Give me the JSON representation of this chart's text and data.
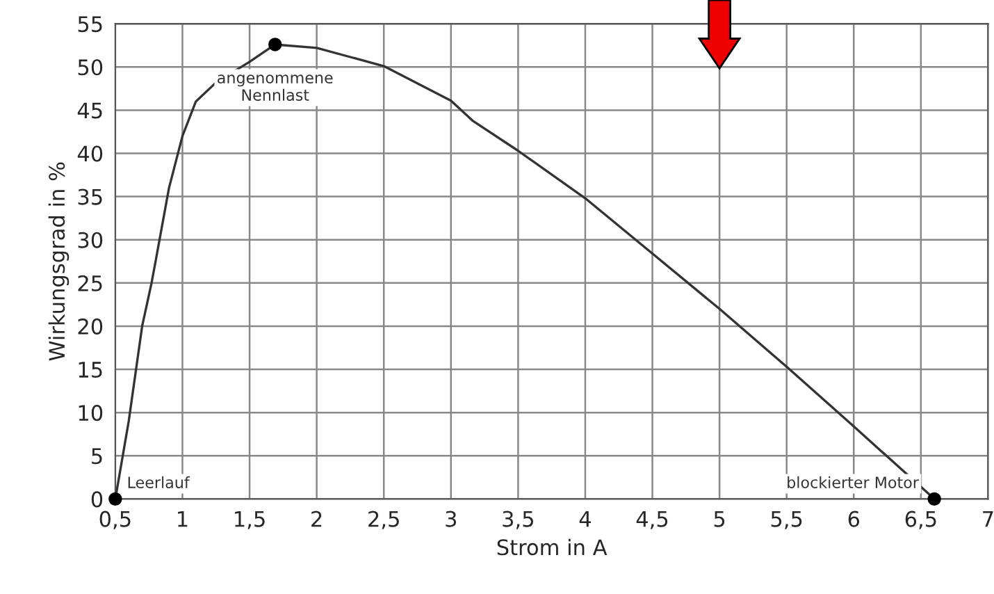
{
  "chart_data": {
    "type": "line",
    "xlabel": "Strom in A",
    "ylabel": "Wirkungsgrad in %",
    "xlim": [
      0.5,
      7
    ],
    "ylim": [
      0,
      55
    ],
    "xticks": [
      {
        "value": 0.5,
        "label": "0,5"
      },
      1,
      {
        "value": 1.5,
        "label": "1,5"
      },
      2,
      {
        "value": 2.5,
        "label": "2,5"
      },
      3,
      {
        "value": 3.5,
        "label": "3,5"
      },
      4,
      {
        "value": 4.5,
        "label": "4,5"
      },
      5,
      {
        "value": 5.5,
        "label": "5,5"
      },
      6,
      {
        "value": 6.5,
        "label": "6,5"
      },
      7
    ],
    "yticks": [
      0,
      5,
      10,
      15,
      20,
      25,
      30,
      35,
      40,
      45,
      50,
      55
    ],
    "grid": true,
    "legend": false,
    "series": [
      {
        "color": "#333333",
        "marker": "none",
        "line_style": "solid",
        "x": [
          0.5,
          0.6,
          0.7,
          0.77,
          0.8,
          0.9,
          1.0,
          1.1,
          1.25,
          1.5,
          1.69,
          2.0,
          2.5,
          3.0,
          3.16,
          3.5,
          4.0,
          4.5,
          5.0,
          5.5,
          6.0,
          6.6
        ],
        "values": [
          0,
          9,
          20,
          25,
          27.5,
          36,
          42,
          46,
          48.2,
          50.6,
          52.6,
          52.2,
          50.1,
          46.1,
          43.8,
          40.3,
          34.8,
          28.4,
          22,
          15.3,
          8.4,
          0
        ]
      },
      {
        "type": "scatter",
        "color": "#000000",
        "marker": "circle",
        "x": [
          0.5,
          1.69,
          6.6
        ],
        "values": [
          0,
          52.6,
          0
        ]
      }
    ],
    "annotations": [
      {
        "text": "Leerlauf",
        "x": 0.5,
        "y": 0
      },
      {
        "text": "angenommene\nNennlast",
        "x": 1.69,
        "y": 52.6
      },
      {
        "text": "blockierter Motor",
        "x": 6.6,
        "y": 0
      }
    ]
  }
}
